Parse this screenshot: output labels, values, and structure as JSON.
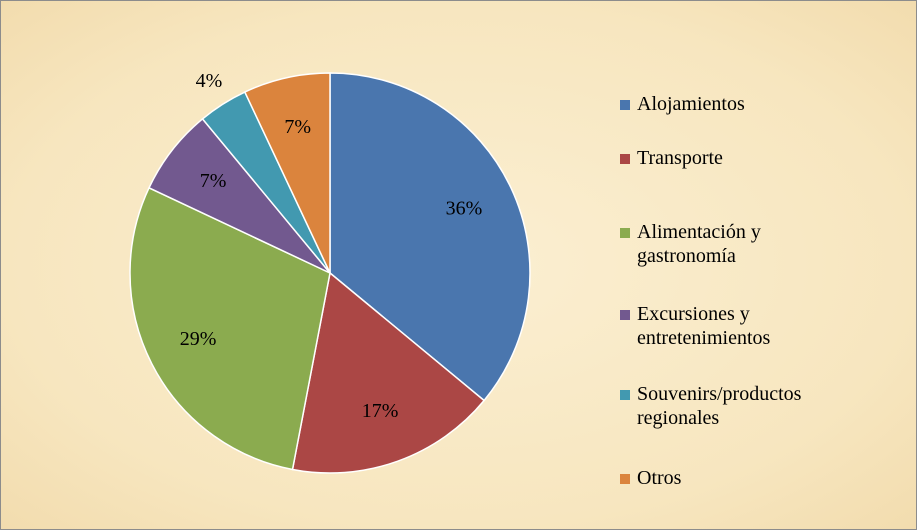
{
  "chart_data": {
    "type": "pie",
    "categories": [
      "Alojamientos",
      "Transporte",
      "Alimentación y gastronomía",
      "Excursiones y entretenimientos",
      "Souvenirs/productos regionales",
      "Otros"
    ],
    "values": [
      36,
      17,
      29,
      7,
      4,
      7
    ],
    "value_labels": [
      "36%",
      "17%",
      "29%",
      "7%",
      "4%",
      "7%"
    ],
    "colors": [
      "#4a76ae",
      "#ab4745",
      "#8bab4f",
      "#72598f",
      "#4299b0",
      "#db843d"
    ]
  }
}
